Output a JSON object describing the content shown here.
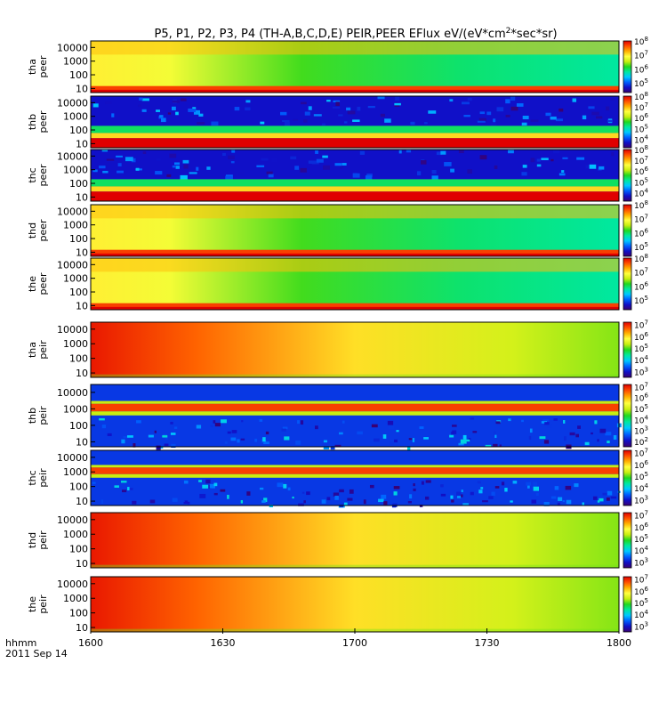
{
  "title_parts": {
    "prefix": "P5, P1, P2, P3, P4 (TH-A,B,C,D,E) PEIR,PEER EFlux eV/(eV*cm",
    "sup": "2",
    "suffix": "*sec*sr)"
  },
  "footer": {
    "time_format_label": "hhmm",
    "date_label": "2011 Sep 14"
  },
  "colors": {
    "colormap": [
      "#3a0072",
      "#1010c8",
      "#0060ff",
      "#00c8ff",
      "#00e8a0",
      "#20d820",
      "#c8ee10",
      "#ffff40",
      "#ffb000",
      "#ff5000",
      "#e00000"
    ],
    "frame": "#000000",
    "gap_fill": "#ffffff"
  },
  "chart_data": {
    "type": "heatmap",
    "x_axis": {
      "ticks": [
        "1600",
        "1630",
        "1700",
        "1730",
        "1800"
      ],
      "range": [
        "16:00",
        "18:00"
      ]
    },
    "y_axis": {
      "scale": "log",
      "range": [
        5,
        30000
      ],
      "ticks": [
        10,
        100,
        1000,
        10000
      ],
      "tick_labels": [
        "10",
        "100",
        "1000",
        "10000"
      ]
    },
    "panels": [
      {
        "label1": "tha",
        "label2": "peer",
        "cbar_min_exp": 4.3,
        "cbar_max_exp": 8,
        "cbar_ticks": [
          {
            "b": "10",
            "e": "5"
          },
          {
            "b": "10",
            "e": "6"
          },
          {
            "b": "10",
            "e": "7"
          },
          {
            "b": "10",
            "e": "8"
          }
        ],
        "style": "peer_smooth"
      },
      {
        "label1": "thb",
        "label2": "peer",
        "cbar_min_exp": 3.2,
        "cbar_max_exp": 8,
        "cbar_ticks": [
          {
            "b": "10",
            "e": "4"
          },
          {
            "b": "10",
            "e": "5"
          },
          {
            "b": "10",
            "e": "6"
          },
          {
            "b": "10",
            "e": "7"
          },
          {
            "b": "10",
            "e": "8"
          }
        ],
        "style": "peer_noisy"
      },
      {
        "label1": "thc",
        "label2": "peer",
        "cbar_min_exp": 3.2,
        "cbar_max_exp": 8,
        "cbar_ticks": [
          {
            "b": "10",
            "e": "4"
          },
          {
            "b": "10",
            "e": "5"
          },
          {
            "b": "10",
            "e": "6"
          },
          {
            "b": "10",
            "e": "7"
          },
          {
            "b": "10",
            "e": "8"
          }
        ],
        "style": "peer_noisy"
      },
      {
        "label1": "thd",
        "label2": "peer",
        "cbar_min_exp": 4.3,
        "cbar_max_exp": 8,
        "cbar_ticks": [
          {
            "b": "10",
            "e": "5"
          },
          {
            "b": "10",
            "e": "6"
          },
          {
            "b": "10",
            "e": "7"
          },
          {
            "b": "10",
            "e": "8"
          }
        ],
        "style": "peer_smooth"
      },
      {
        "label1": "the",
        "label2": "peer",
        "cbar_min_exp": 4.3,
        "cbar_max_exp": 8,
        "cbar_ticks": [
          {
            "b": "10",
            "e": "5"
          },
          {
            "b": "10",
            "e": "6"
          },
          {
            "b": "10",
            "e": "7"
          },
          {
            "b": "10",
            "e": "8"
          }
        ],
        "style": "peer_smooth"
      },
      {
        "label1": "tha",
        "label2": "peir",
        "cbar_min_exp": 2.5,
        "cbar_max_exp": 7.2,
        "cbar_ticks": [
          {
            "b": "10",
            "e": "3"
          },
          {
            "b": "10",
            "e": "4"
          },
          {
            "b": "10",
            "e": "5"
          },
          {
            "b": "10",
            "e": "6"
          },
          {
            "b": "10",
            "e": "7"
          }
        ],
        "style": "peir_smooth"
      },
      {
        "label1": "thb",
        "label2": "peir",
        "cbar_min_exp": 1.5,
        "cbar_max_exp": 7.2,
        "cbar_ticks": [
          {
            "b": "10",
            "e": "2"
          },
          {
            "b": "10",
            "e": "3"
          },
          {
            "b": "10",
            "e": "4"
          },
          {
            "b": "10",
            "e": "5"
          },
          {
            "b": "10",
            "e": "6"
          },
          {
            "b": "10",
            "e": "7"
          }
        ],
        "style": "peir_noisy"
      },
      {
        "label1": "thc",
        "label2": "peir",
        "cbar_min_exp": 2.5,
        "cbar_max_exp": 7.2,
        "cbar_ticks": [
          {
            "b": "10",
            "e": "3"
          },
          {
            "b": "10",
            "e": "4"
          },
          {
            "b": "10",
            "e": "5"
          },
          {
            "b": "10",
            "e": "6"
          },
          {
            "b": "10",
            "e": "7"
          }
        ],
        "style": "peir_noisy"
      },
      {
        "label1": "thd",
        "label2": "peir",
        "cbar_min_exp": 2.5,
        "cbar_max_exp": 7.2,
        "cbar_ticks": [
          {
            "b": "10",
            "e": "3"
          },
          {
            "b": "10",
            "e": "4"
          },
          {
            "b": "10",
            "e": "5"
          },
          {
            "b": "10",
            "e": "6"
          },
          {
            "b": "10",
            "e": "7"
          }
        ],
        "style": "peir_smooth"
      },
      {
        "label1": "the",
        "label2": "peir",
        "cbar_min_exp": 2.5,
        "cbar_max_exp": 7.2,
        "cbar_ticks": [
          {
            "b": "10",
            "e": "3"
          },
          {
            "b": "10",
            "e": "4"
          },
          {
            "b": "10",
            "e": "5"
          },
          {
            "b": "10",
            "e": "6"
          },
          {
            "b": "10",
            "e": "7"
          }
        ],
        "style": "peir_smooth"
      }
    ]
  }
}
